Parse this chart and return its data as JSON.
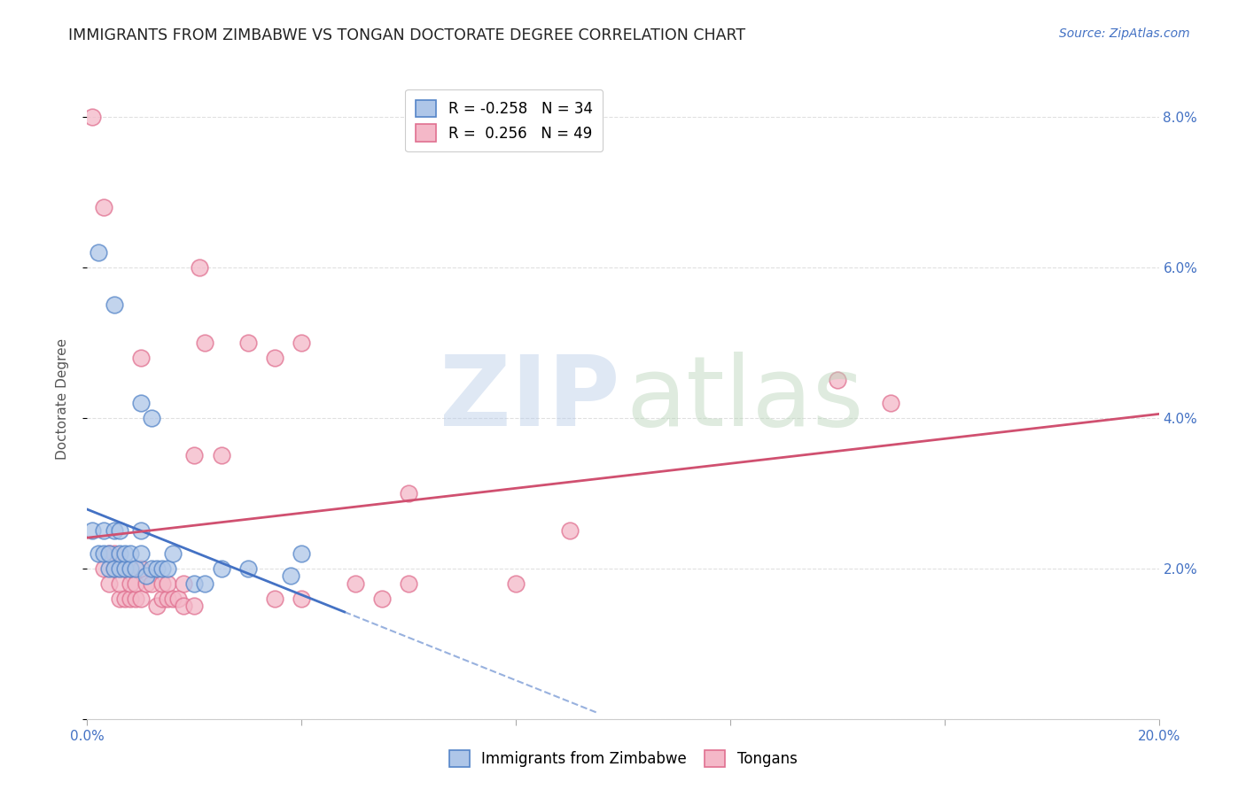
{
  "title": "IMMIGRANTS FROM ZIMBABWE VS TONGAN DOCTORATE DEGREE CORRELATION CHART",
  "source": "Source: ZipAtlas.com",
  "ylabel": "Doctorate Degree",
  "xlim": [
    0.0,
    0.2
  ],
  "ylim": [
    0.0,
    0.085
  ],
  "xticks": [
    0.0,
    0.04,
    0.08,
    0.12,
    0.16,
    0.2
  ],
  "xticklabels": [
    "0.0%",
    "",
    "",
    "",
    "",
    "20.0%"
  ],
  "yticks": [
    0.0,
    0.02,
    0.04,
    0.06,
    0.08
  ],
  "yticklabels": [
    "",
    "2.0%",
    "4.0%",
    "6.0%",
    "8.0%"
  ],
  "legend_r_blue": "-0.258",
  "legend_n_blue": "34",
  "legend_r_pink": " 0.256",
  "legend_n_pink": "49",
  "blue_fill": "#aec6e8",
  "pink_fill": "#f4b8c8",
  "blue_edge": "#5585c8",
  "pink_edge": "#e07090",
  "blue_line_color": "#4472c4",
  "pink_line_color": "#d05070",
  "blue_scatter": [
    [
      0.001,
      0.025
    ],
    [
      0.002,
      0.022
    ],
    [
      0.003,
      0.022
    ],
    [
      0.003,
      0.025
    ],
    [
      0.004,
      0.02
    ],
    [
      0.004,
      0.022
    ],
    [
      0.005,
      0.02
    ],
    [
      0.005,
      0.025
    ],
    [
      0.006,
      0.02
    ],
    [
      0.006,
      0.022
    ],
    [
      0.006,
      0.025
    ],
    [
      0.007,
      0.02
    ],
    [
      0.007,
      0.022
    ],
    [
      0.008,
      0.02
    ],
    [
      0.008,
      0.022
    ],
    [
      0.009,
      0.02
    ],
    [
      0.01,
      0.022
    ],
    [
      0.01,
      0.025
    ],
    [
      0.011,
      0.019
    ],
    [
      0.012,
      0.02
    ],
    [
      0.013,
      0.02
    ],
    [
      0.014,
      0.02
    ],
    [
      0.015,
      0.02
    ],
    [
      0.016,
      0.022
    ],
    [
      0.02,
      0.018
    ],
    [
      0.022,
      0.018
    ],
    [
      0.025,
      0.02
    ],
    [
      0.03,
      0.02
    ],
    [
      0.038,
      0.019
    ],
    [
      0.04,
      0.022
    ],
    [
      0.002,
      0.062
    ],
    [
      0.01,
      0.042
    ],
    [
      0.012,
      0.04
    ],
    [
      0.005,
      0.055
    ]
  ],
  "pink_scatter": [
    [
      0.001,
      0.08
    ],
    [
      0.003,
      0.068
    ],
    [
      0.003,
      0.02
    ],
    [
      0.004,
      0.018
    ],
    [
      0.004,
      0.022
    ],
    [
      0.005,
      0.02
    ],
    [
      0.005,
      0.022
    ],
    [
      0.006,
      0.02
    ],
    [
      0.006,
      0.016
    ],
    [
      0.006,
      0.018
    ],
    [
      0.007,
      0.02
    ],
    [
      0.007,
      0.016
    ],
    [
      0.008,
      0.016
    ],
    [
      0.008,
      0.018
    ],
    [
      0.008,
      0.02
    ],
    [
      0.009,
      0.016
    ],
    [
      0.009,
      0.018
    ],
    [
      0.01,
      0.02
    ],
    [
      0.01,
      0.016
    ],
    [
      0.011,
      0.018
    ],
    [
      0.012,
      0.018
    ],
    [
      0.013,
      0.015
    ],
    [
      0.014,
      0.016
    ],
    [
      0.014,
      0.018
    ],
    [
      0.015,
      0.016
    ],
    [
      0.015,
      0.018
    ],
    [
      0.016,
      0.016
    ],
    [
      0.017,
      0.016
    ],
    [
      0.018,
      0.015
    ],
    [
      0.018,
      0.018
    ],
    [
      0.02,
      0.035
    ],
    [
      0.02,
      0.015
    ],
    [
      0.021,
      0.06
    ],
    [
      0.022,
      0.05
    ],
    [
      0.025,
      0.035
    ],
    [
      0.03,
      0.05
    ],
    [
      0.035,
      0.048
    ],
    [
      0.035,
      0.016
    ],
    [
      0.04,
      0.05
    ],
    [
      0.04,
      0.016
    ],
    [
      0.05,
      0.018
    ],
    [
      0.055,
      0.016
    ],
    [
      0.06,
      0.018
    ],
    [
      0.08,
      0.018
    ],
    [
      0.09,
      0.025
    ],
    [
      0.01,
      0.048
    ],
    [
      0.14,
      0.045
    ],
    [
      0.15,
      0.042
    ],
    [
      0.06,
      0.03
    ]
  ],
  "background_color": "#ffffff",
  "grid_color": "#e0e0e0"
}
